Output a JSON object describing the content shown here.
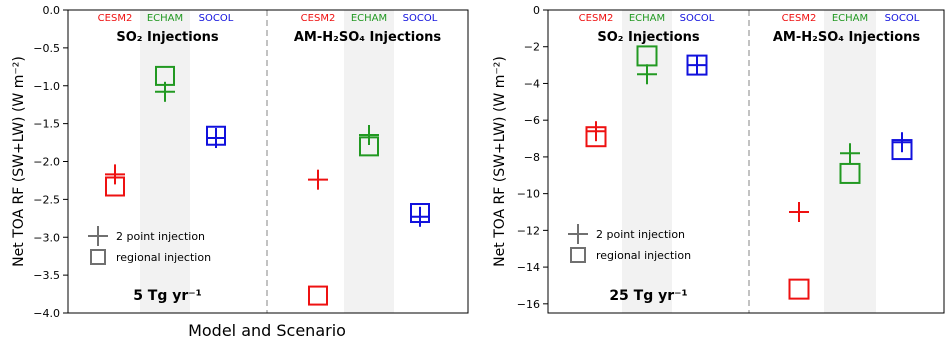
{
  "colors": {
    "CESM2": "#ee1111",
    "ECHAM": "#229922",
    "SOCOL": "#1111dd",
    "legend": "#707070",
    "shade": "#f2f2f2",
    "axis": "#000000",
    "divider": "#999999"
  },
  "shared": {
    "ylabel": "Net TOA RF (SW+LW) (W m⁻²)",
    "xlabel": "Model and Scenario",
    "model_labels": [
      "CESM2",
      "ECHAM",
      "SOCOL"
    ],
    "legend": [
      "2 point injection",
      "regional injection"
    ]
  },
  "chart_data": [
    {
      "type": "scatter",
      "title_left": "SO₂ Injections",
      "title_right": "AM-H₂SO₄ Injections",
      "annotation": "5 Tg yr⁻¹",
      "ylabel": "Net TOA RF (SW+LW) (W m⁻²)",
      "xlabel": "Model and Scenario",
      "ylim": [
        -4.0,
        0.0
      ],
      "yticks": [
        0.0,
        -0.5,
        -1.0,
        -1.5,
        -2.0,
        -2.5,
        -3.0,
        -3.5,
        -4.0
      ],
      "ytick_labels": [
        "0.0",
        "−0.5",
        "−1.0",
        "−1.5",
        "−2.0",
        "−2.5",
        "−3.0",
        "−3.5",
        "−4.0"
      ],
      "series": [
        {
          "name": "2 point injection",
          "marker": "plus",
          "points": [
            {
              "scenario": "SO2",
              "model": "CESM2",
              "value": -2.17
            },
            {
              "scenario": "SO2",
              "model": "ECHAM",
              "value": -1.08
            },
            {
              "scenario": "SO2",
              "model": "SOCOL",
              "value": -1.69
            },
            {
              "scenario": "AM-H2SO4",
              "model": "CESM2",
              "value": -2.24
            },
            {
              "scenario": "AM-H2SO4",
              "model": "ECHAM",
              "value": -1.65
            },
            {
              "scenario": "AM-H2SO4",
              "model": "SOCOL",
              "value": -2.73
            }
          ]
        },
        {
          "name": "regional injection",
          "marker": "square",
          "points": [
            {
              "scenario": "SO2",
              "model": "CESM2",
              "value": -2.33
            },
            {
              "scenario": "SO2",
              "model": "ECHAM",
              "value": -0.87
            },
            {
              "scenario": "SO2",
              "model": "SOCOL",
              "value": -1.66
            },
            {
              "scenario": "AM-H2SO4",
              "model": "CESM2",
              "value": -3.77
            },
            {
              "scenario": "AM-H2SO4",
              "model": "ECHAM",
              "value": -1.8
            },
            {
              "scenario": "AM-H2SO4",
              "model": "SOCOL",
              "value": -2.68
            }
          ]
        }
      ]
    },
    {
      "type": "scatter",
      "title_left": "SO₂ Injections",
      "title_right": "AM-H₂SO₄ Injections",
      "annotation": "25 Tg yr⁻¹",
      "ylabel": "Net TOA RF (SW+LW) (W m⁻²)",
      "xlabel": "",
      "ylim": [
        -16.5,
        0.0
      ],
      "yticks": [
        0,
        -2,
        -4,
        -6,
        -8,
        -10,
        -12,
        -14,
        -16
      ],
      "ytick_labels": [
        "0",
        "−2",
        "−4",
        "−6",
        "−8",
        "−10",
        "−12",
        "−14",
        "−16"
      ],
      "series": [
        {
          "name": "2 point injection",
          "marker": "plus",
          "points": [
            {
              "scenario": "SO2",
              "model": "CESM2",
              "value": -6.6
            },
            {
              "scenario": "SO2",
              "model": "ECHAM",
              "value": -3.5
            },
            {
              "scenario": "SO2",
              "model": "SOCOL",
              "value": -3.0
            },
            {
              "scenario": "AM-H2SO4",
              "model": "CESM2",
              "value": -11.0
            },
            {
              "scenario": "AM-H2SO4",
              "model": "ECHAM",
              "value": -7.8
            },
            {
              "scenario": "AM-H2SO4",
              "model": "SOCOL",
              "value": -7.2
            }
          ]
        },
        {
          "name": "regional injection",
          "marker": "square",
          "points": [
            {
              "scenario": "SO2",
              "model": "CESM2",
              "value": -6.9
            },
            {
              "scenario": "SO2",
              "model": "ECHAM",
              "value": -2.5
            },
            {
              "scenario": "SO2",
              "model": "SOCOL",
              "value": -3.0
            },
            {
              "scenario": "AM-H2SO4",
              "model": "CESM2",
              "value": -15.2
            },
            {
              "scenario": "AM-H2SO4",
              "model": "ECHAM",
              "value": -8.9
            },
            {
              "scenario": "AM-H2SO4",
              "model": "SOCOL",
              "value": -7.6
            }
          ]
        }
      ]
    }
  ]
}
